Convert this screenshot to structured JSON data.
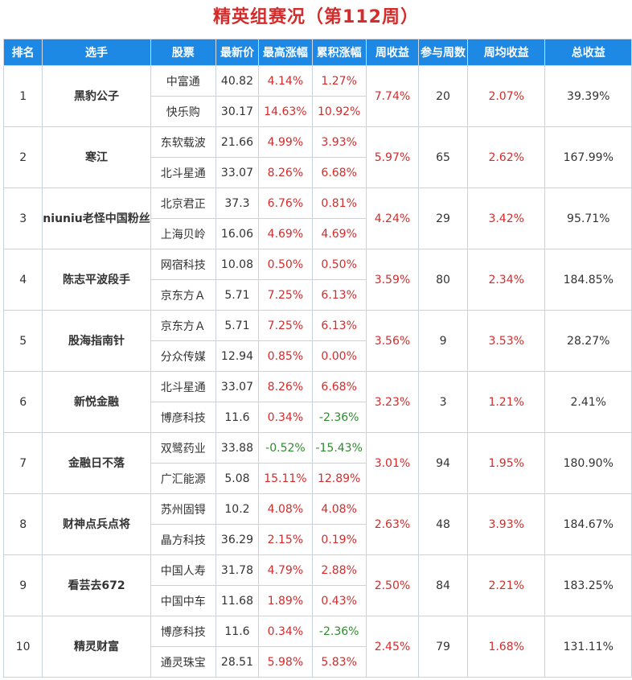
{
  "title": "精英组赛况（第112周）",
  "colors": {
    "header_bg": "#1e88e5",
    "title": "#d62b2b",
    "up": "#d62b2b",
    "down": "#2e8b2e",
    "player": "#2b5fa8"
  },
  "headers": [
    "排名",
    "选手",
    "股票",
    "最新价",
    "最高涨幅",
    "累积涨幅",
    "周收益",
    "参与周数",
    "周均收益",
    "总收益"
  ],
  "rows": [
    {
      "rank": "1",
      "player": "黑豹公子",
      "week": "7.74%",
      "weeks": "20",
      "avg": "2.07%",
      "total": "39.39%",
      "stocks": [
        {
          "name": "中富通",
          "price": "40.82",
          "high": "4.14%",
          "cum": "1.27%"
        },
        {
          "name": "快乐购",
          "price": "30.17",
          "high": "14.63%",
          "cum": "10.92%"
        }
      ]
    },
    {
      "rank": "2",
      "player": "寒江",
      "week": "5.97%",
      "weeks": "65",
      "avg": "2.62%",
      "total": "167.99%",
      "stocks": [
        {
          "name": "东软载波",
          "price": "21.66",
          "high": "4.99%",
          "cum": "3.93%"
        },
        {
          "name": "北斗星通",
          "price": "33.07",
          "high": "8.26%",
          "cum": "6.68%"
        }
      ]
    },
    {
      "rank": "3",
      "player": "niuniu老怪中国粉丝",
      "week": "4.24%",
      "weeks": "29",
      "avg": "3.42%",
      "total": "95.71%",
      "stocks": [
        {
          "name": "北京君正",
          "price": "37.3",
          "high": "6.76%",
          "cum": "0.81%"
        },
        {
          "name": "上海贝岭",
          "price": "16.06",
          "high": "4.69%",
          "cum": "4.69%"
        }
      ]
    },
    {
      "rank": "4",
      "player": "陈志平波段手",
      "week": "3.59%",
      "weeks": "80",
      "avg": "2.34%",
      "total": "184.85%",
      "stocks": [
        {
          "name": "网宿科技",
          "price": "10.08",
          "high": "0.50%",
          "cum": "0.50%"
        },
        {
          "name": "京东方Ａ",
          "price": "5.71",
          "high": "7.25%",
          "cum": "6.13%"
        }
      ]
    },
    {
      "rank": "5",
      "player": "股海指南针",
      "week": "3.56%",
      "weeks": "9",
      "avg": "3.53%",
      "total": "28.27%",
      "stocks": [
        {
          "name": "京东方Ａ",
          "price": "5.71",
          "high": "7.25%",
          "cum": "6.13%"
        },
        {
          "name": "分众传媒",
          "price": "12.94",
          "high": "0.85%",
          "cum": "0.00%"
        }
      ]
    },
    {
      "rank": "6",
      "player": "新悦金融",
      "week": "3.23%",
      "weeks": "3",
      "avg": "1.21%",
      "total": "2.41%",
      "stocks": [
        {
          "name": "北斗星通",
          "price": "33.07",
          "high": "8.26%",
          "cum": "6.68%"
        },
        {
          "name": "博彦科技",
          "price": "11.6",
          "high": "0.34%",
          "cum": "-2.36%"
        }
      ]
    },
    {
      "rank": "7",
      "player": "金融日不落",
      "week": "3.01%",
      "weeks": "94",
      "avg": "1.95%",
      "total": "180.90%",
      "stocks": [
        {
          "name": "双鹭药业",
          "price": "33.88",
          "high": "-0.52%",
          "cum": "-15.43%"
        },
        {
          "name": "广汇能源",
          "price": "5.08",
          "high": "15.11%",
          "cum": "12.89%"
        }
      ]
    },
    {
      "rank": "8",
      "player": "财神点兵点将",
      "week": "2.63%",
      "weeks": "48",
      "avg": "3.93%",
      "total": "184.67%",
      "stocks": [
        {
          "name": "苏州固锝",
          "price": "10.2",
          "high": "4.08%",
          "cum": "4.08%"
        },
        {
          "name": "晶方科技",
          "price": "36.29",
          "high": "2.15%",
          "cum": "0.19%"
        }
      ]
    },
    {
      "rank": "9",
      "player": "看芸去672",
      "week": "2.50%",
      "weeks": "84",
      "avg": "2.21%",
      "total": "183.25%",
      "stocks": [
        {
          "name": "中国人寿",
          "price": "31.78",
          "high": "4.79%",
          "cum": "2.88%"
        },
        {
          "name": "中国中车",
          "price": "11.68",
          "high": "1.89%",
          "cum": "0.43%"
        }
      ]
    },
    {
      "rank": "10",
      "player": "精灵财富",
      "week": "2.45%",
      "weeks": "79",
      "avg": "1.68%",
      "total": "131.11%",
      "stocks": [
        {
          "name": "博彦科技",
          "price": "11.6",
          "high": "0.34%",
          "cum": "-2.36%"
        },
        {
          "name": "通灵珠宝",
          "price": "28.51",
          "high": "5.98%",
          "cum": "5.83%"
        }
      ]
    }
  ]
}
